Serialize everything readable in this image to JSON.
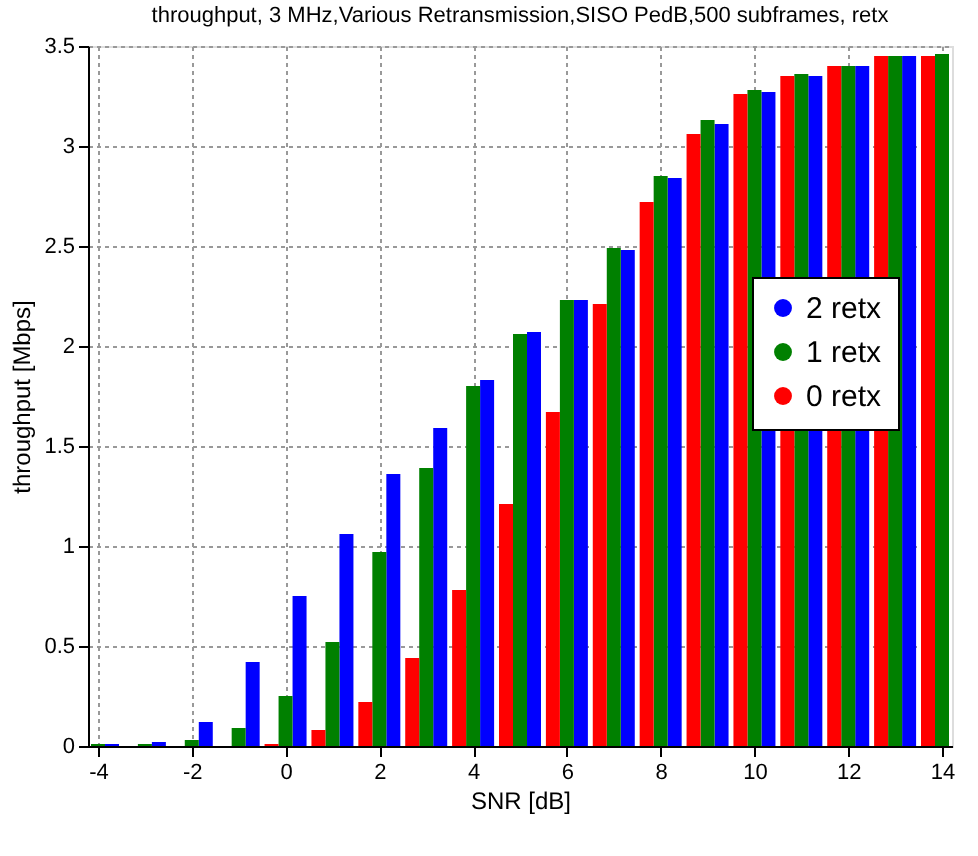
{
  "chart_data": {
    "type": "bar",
    "title": "throughput, 3 MHz,Various Retransmission,SISO PedB,500 subframes, retx",
    "xlabel": "SNR [dB]",
    "ylabel": "throughput [Mbps]",
    "x": [
      -4,
      -3,
      -2,
      -1,
      0,
      1,
      2,
      3,
      4,
      5,
      6,
      7,
      8,
      9,
      10,
      11,
      12,
      13,
      14
    ],
    "series": [
      {
        "name": "2 retx",
        "color": "#0000ff",
        "values": [
          0.01,
          0.02,
          0.12,
          0.42,
          0.75,
          1.06,
          1.36,
          1.59,
          1.83,
          2.07,
          2.23,
          2.48,
          2.84,
          3.11,
          3.27,
          3.35,
          3.4,
          3.45,
          null
        ]
      },
      {
        "name": "1 retx",
        "color": "#008000",
        "values": [
          0.01,
          0.01,
          0.03,
          0.09,
          0.25,
          0.52,
          0.97,
          1.39,
          1.8,
          2.06,
          2.23,
          2.49,
          2.85,
          3.13,
          3.28,
          3.36,
          3.4,
          3.45,
          3.46
        ]
      },
      {
        "name": "0 retx",
        "color": "#ff0000",
        "values": [
          null,
          null,
          null,
          null,
          0.01,
          0.08,
          0.22,
          0.44,
          0.78,
          1.21,
          1.67,
          2.21,
          2.72,
          3.06,
          3.26,
          3.35,
          3.4,
          3.45,
          3.45
        ]
      }
    ],
    "xlim": [
      -4,
      14
    ],
    "xticks": [
      -4,
      -2,
      0,
      2,
      4,
      6,
      8,
      10,
      12,
      14
    ],
    "ylim": [
      0,
      3.5
    ],
    "yticks": [
      0,
      0.5,
      1,
      1.5,
      2,
      2.5,
      3,
      3.5
    ],
    "grid": true,
    "legend": "right",
    "marker": "circle"
  }
}
